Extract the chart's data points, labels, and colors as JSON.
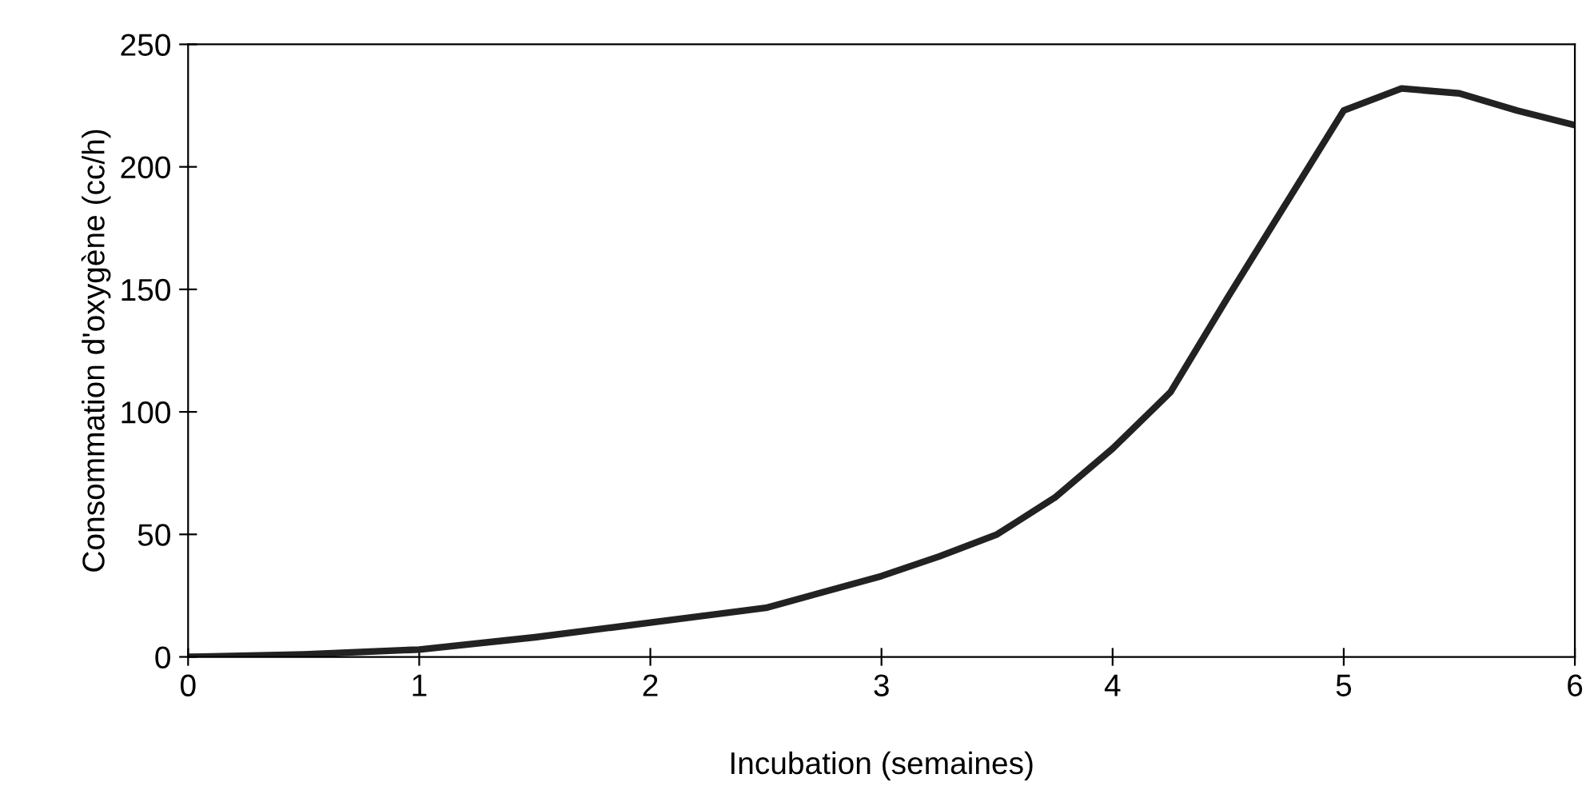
{
  "chart_data": {
    "type": "line",
    "xlabel": "Incubation (semaines)",
    "ylabel": "Consommation d'oxygène (cc/h)",
    "x": [
      0,
      0.5,
      1,
      1.5,
      2,
      2.5,
      3,
      3.25,
      3.5,
      3.75,
      4,
      4.25,
      4.5,
      4.75,
      5,
      5.25,
      5.5,
      5.75,
      6
    ],
    "series": [
      {
        "color": "#222222",
        "values": [
          0,
          1,
          3,
          8,
          14,
          20,
          33,
          41,
          50,
          65,
          85,
          108,
          147,
          185,
          223,
          232,
          230,
          223,
          217
        ]
      }
    ],
    "xlim": [
      0,
      6
    ],
    "ylim": [
      0,
      250
    ],
    "xticks": [
      0,
      1,
      2,
      3,
      4,
      5,
      6
    ],
    "yticks": [
      0,
      50,
      100,
      150,
      200,
      250
    ],
    "grid": false,
    "legend": false,
    "marker": "none",
    "line_style": "solid"
  }
}
